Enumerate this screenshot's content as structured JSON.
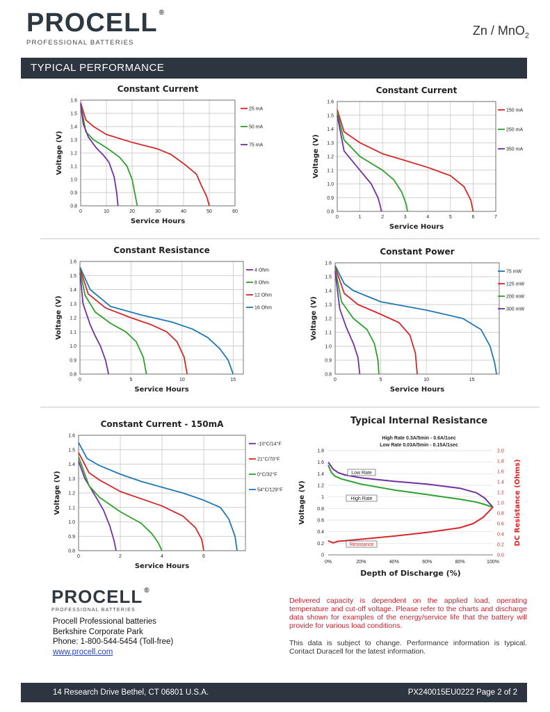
{
  "brand": {
    "name": "PROCELL",
    "reg": "®",
    "tagline": "PROFESSIONAL BATTERIES"
  },
  "chemistry": {
    "base": "Zn / MnO",
    "sub": "2"
  },
  "section": {
    "title": "TYPICAL  PERFORMANCE"
  },
  "charts": [
    {
      "title": "Constant Current",
      "xlabel": "Service Hours",
      "ylabel": "Voltage (V)",
      "xlim": [
        0,
        60
      ],
      "ylim": [
        0.8,
        1.6
      ],
      "xticks": [
        0,
        10,
        20,
        30,
        40,
        50,
        60
      ],
      "yticks": [
        0.8,
        0.9,
        1.0,
        1.1,
        1.2,
        1.3,
        1.4,
        1.5,
        1.6
      ],
      "ydec": 1,
      "series": [
        {
          "name": "25 mA",
          "color": "#d62728",
          "points": [
            [
              0,
              1.58
            ],
            [
              2,
              1.45
            ],
            [
              5,
              1.4
            ],
            [
              10,
              1.34
            ],
            [
              20,
              1.28
            ],
            [
              30,
              1.23
            ],
            [
              35,
              1.19
            ],
            [
              40,
              1.12
            ],
            [
              45,
              1.04
            ],
            [
              47,
              0.95
            ],
            [
              49,
              0.87
            ],
            [
              50,
              0.8
            ]
          ]
        },
        {
          "name": "50 mA",
          "color": "#2ca02c",
          "points": [
            [
              0,
              1.57
            ],
            [
              2,
              1.36
            ],
            [
              5,
              1.3
            ],
            [
              10,
              1.24
            ],
            [
              15,
              1.17
            ],
            [
              18,
              1.1
            ],
            [
              20,
              1.0
            ],
            [
              21,
              0.9
            ],
            [
              22,
              0.8
            ]
          ]
        },
        {
          "name": "75 mA",
          "color": "#7030a0",
          "points": [
            [
              0,
              1.57
            ],
            [
              1,
              1.42
            ],
            [
              3,
              1.32
            ],
            [
              6,
              1.24
            ],
            [
              9,
              1.18
            ],
            [
              11,
              1.13
            ],
            [
              13,
              1.02
            ],
            [
              14,
              0.9
            ],
            [
              14.5,
              0.8
            ]
          ]
        }
      ]
    },
    {
      "title": "Constant Current",
      "xlabel": "Service Hours",
      "ylabel": "Voltage (V)",
      "xlim": [
        0,
        7
      ],
      "ylim": [
        0.8,
        1.6
      ],
      "xticks": [
        0,
        1,
        2,
        3,
        4,
        5,
        6,
        7
      ],
      "yticks": [
        0.8,
        0.9,
        1.0,
        1.1,
        1.2,
        1.3,
        1.4,
        1.5,
        1.6
      ],
      "ydec": 1,
      "series": [
        {
          "name": "150 mA",
          "color": "#d62728",
          "points": [
            [
              0,
              1.54
            ],
            [
              0.3,
              1.38
            ],
            [
              1,
              1.3
            ],
            [
              2,
              1.22
            ],
            [
              3,
              1.17
            ],
            [
              4,
              1.12
            ],
            [
              5,
              1.06
            ],
            [
              5.6,
              0.98
            ],
            [
              5.9,
              0.88
            ],
            [
              6,
              0.8
            ]
          ]
        },
        {
          "name": "250 mA",
          "color": "#2ca02c",
          "points": [
            [
              0,
              1.52
            ],
            [
              0.3,
              1.32
            ],
            [
              1,
              1.2
            ],
            [
              2,
              1.1
            ],
            [
              2.5,
              1.03
            ],
            [
              2.85,
              0.94
            ],
            [
              3.05,
              0.85
            ],
            [
              3.1,
              0.8
            ]
          ]
        },
        {
          "name": "350 mA",
          "color": "#7030a0",
          "points": [
            [
              0,
              1.5
            ],
            [
              0.3,
              1.24
            ],
            [
              1,
              1.1
            ],
            [
              1.5,
              1.0
            ],
            [
              1.8,
              0.9
            ],
            [
              1.9,
              0.84
            ],
            [
              1.95,
              0.8
            ]
          ]
        }
      ]
    },
    {
      "title": "Constant Resistance",
      "xlabel": "Service Hours",
      "ylabel": "Voltage (V)",
      "xlim": [
        0,
        16
      ],
      "ylim": [
        0.8,
        1.6
      ],
      "xticks": [
        0,
        5,
        10,
        15
      ],
      "yticks": [
        0.8,
        0.9,
        1.0,
        1.1,
        1.2,
        1.3,
        1.4,
        1.5,
        1.6
      ],
      "ydec": 1,
      "series": [
        {
          "name": "4 Ohm",
          "color": "#7030a0",
          "points": [
            [
              0,
              1.52
            ],
            [
              0.3,
              1.3
            ],
            [
              1,
              1.15
            ],
            [
              1.5,
              1.07
            ],
            [
              2,
              1.0
            ],
            [
              2.5,
              0.9
            ],
            [
              2.8,
              0.8
            ]
          ]
        },
        {
          "name": "8 Ohm",
          "color": "#2ca02c",
          "points": [
            [
              0,
              1.54
            ],
            [
              0.5,
              1.36
            ],
            [
              1.5,
              1.24
            ],
            [
              3,
              1.16
            ],
            [
              4.5,
              1.1
            ],
            [
              5.5,
              1.03
            ],
            [
              6.2,
              0.92
            ],
            [
              6.5,
              0.8
            ]
          ]
        },
        {
          "name": "12 Ohm",
          "color": "#d62728",
          "points": [
            [
              0,
              1.55
            ],
            [
              0.8,
              1.37
            ],
            [
              2.5,
              1.27
            ],
            [
              5,
              1.2
            ],
            [
              7,
              1.15
            ],
            [
              8.5,
              1.1
            ],
            [
              9.5,
              1.03
            ],
            [
              10.2,
              0.92
            ],
            [
              10.5,
              0.8
            ]
          ]
        },
        {
          "name": "16 Ohm",
          "color": "#1f77b4",
          "points": [
            [
              0,
              1.56
            ],
            [
              1,
              1.4
            ],
            [
              3,
              1.28
            ],
            [
              6,
              1.22
            ],
            [
              9,
              1.17
            ],
            [
              11,
              1.12
            ],
            [
              12.5,
              1.06
            ],
            [
              13.7,
              0.98
            ],
            [
              14.5,
              0.9
            ],
            [
              15,
              0.8
            ]
          ]
        }
      ]
    },
    {
      "title": "Constant Power",
      "xlabel": "Service Hours",
      "ylabel": "Voltage (V)",
      "xlim": [
        0,
        18
      ],
      "ylim": [
        0.8,
        1.6
      ],
      "xticks": [
        0,
        5,
        10,
        15
      ],
      "yticks": [
        0.8,
        0.9,
        1.0,
        1.1,
        1.2,
        1.3,
        1.4,
        1.5,
        1.6
      ],
      "ydec": 1,
      "series": [
        {
          "name": "75 mW",
          "color": "#1f77b4",
          "points": [
            [
              0,
              1.58
            ],
            [
              1,
              1.45
            ],
            [
              2,
              1.4
            ],
            [
              5,
              1.32
            ],
            [
              10,
              1.26
            ],
            [
              14,
              1.2
            ],
            [
              16,
              1.12
            ],
            [
              17,
              1.0
            ],
            [
              17.5,
              0.88
            ],
            [
              17.7,
              0.8
            ]
          ]
        },
        {
          "name": "125 mW",
          "color": "#d62728",
          "points": [
            [
              0,
              1.57
            ],
            [
              1,
              1.38
            ],
            [
              2.5,
              1.3
            ],
            [
              5,
              1.23
            ],
            [
              7,
              1.17
            ],
            [
              8.2,
              1.08
            ],
            [
              8.8,
              0.95
            ],
            [
              9,
              0.8
            ]
          ]
        },
        {
          "name": "200 mW",
          "color": "#2ca02c",
          "points": [
            [
              0,
              1.56
            ],
            [
              0.7,
              1.32
            ],
            [
              2,
              1.2
            ],
            [
              3.5,
              1.12
            ],
            [
              4.3,
              1.02
            ],
            [
              4.7,
              0.9
            ],
            [
              4.8,
              0.8
            ]
          ]
        },
        {
          "name": "300 mW",
          "color": "#7030a0",
          "points": [
            [
              0,
              1.54
            ],
            [
              0.5,
              1.27
            ],
            [
              1.2,
              1.14
            ],
            [
              2,
              1.02
            ],
            [
              2.5,
              0.92
            ],
            [
              2.7,
              0.8
            ]
          ]
        }
      ]
    },
    {
      "title": "Constant Current - 150mA",
      "xlabel": "Service Hours",
      "ylabel": "Voltage (V)",
      "xlim": [
        0,
        8
      ],
      "ylim": [
        0.8,
        1.6
      ],
      "xticks": [
        0,
        2,
        4,
        6
      ],
      "yticks": [
        0.8,
        0.9,
        1.0,
        1.1,
        1.2,
        1.3,
        1.4,
        1.5,
        1.6
      ],
      "ydec": 1,
      "series": [
        {
          "name": "-10°C/14°F",
          "color": "#7030a0",
          "points": [
            [
              0,
              1.42
            ],
            [
              0.3,
              1.3
            ],
            [
              0.8,
              1.18
            ],
            [
              1.2,
              1.08
            ],
            [
              1.5,
              0.97
            ],
            [
              1.7,
              0.87
            ],
            [
              1.8,
              0.8
            ]
          ]
        },
        {
          "name": "21°C/70°F",
          "color": "#d62728",
          "points": [
            [
              0,
              1.48
            ],
            [
              0.5,
              1.34
            ],
            [
              1,
              1.29
            ],
            [
              2,
              1.21
            ],
            [
              3,
              1.16
            ],
            [
              4,
              1.11
            ],
            [
              5,
              1.04
            ],
            [
              5.6,
              0.96
            ],
            [
              5.9,
              0.88
            ],
            [
              6,
              0.8
            ]
          ]
        },
        {
          "name": "0°C/32°F",
          "color": "#2ca02c",
          "points": [
            [
              0,
              1.45
            ],
            [
              0.5,
              1.25
            ],
            [
              1,
              1.17
            ],
            [
              2,
              1.07
            ],
            [
              3,
              0.99
            ],
            [
              3.5,
              0.92
            ],
            [
              3.8,
              0.86
            ],
            [
              4,
              0.8
            ]
          ]
        },
        {
          "name": "54°C/129°F",
          "color": "#1f77b4",
          "points": [
            [
              0,
              1.55
            ],
            [
              0.4,
              1.44
            ],
            [
              1,
              1.39
            ],
            [
              2,
              1.33
            ],
            [
              3,
              1.28
            ],
            [
              4,
              1.24
            ],
            [
              5,
              1.2
            ],
            [
              6,
              1.15
            ],
            [
              6.8,
              1.1
            ],
            [
              7.2,
              1.02
            ],
            [
              7.5,
              0.9
            ],
            [
              7.6,
              0.8
            ]
          ]
        }
      ]
    }
  ],
  "ir_chart": {
    "title": "Typical Internal Resistance",
    "subtitle1": "High Rate 0.3A/5min - 0.6A/1sec",
    "subtitle2": "Low Rate 0.03A/5min - 0.15A/1sec",
    "xlabel": "Depth of Discharge (%)",
    "ylabel": "Voltage (V)",
    "y2label": "DC Resistance (Ohms)",
    "xticks": [
      "0%",
      "20%",
      "40%",
      "60%",
      "80%",
      "100%"
    ],
    "yticks": [
      "0",
      "0.2",
      "0.4",
      "0.6",
      "0.8",
      "1",
      "1.2",
      "1.4",
      "1.6",
      "1.8"
    ],
    "y2ticks": [
      "0.0",
      "0.2",
      "0.4",
      "0.6",
      "0.8",
      "1.0",
      "1.2",
      "1.4",
      "1.6",
      "1.8",
      "2.0"
    ],
    "xlim": [
      0,
      100
    ],
    "ylim": [
      0,
      1.8
    ],
    "y2lim": [
      0,
      2.0
    ],
    "series": [
      {
        "name": "Low Rate",
        "color": "#7030a0",
        "axis": "left",
        "points": [
          [
            0,
            1.6
          ],
          [
            3,
            1.48
          ],
          [
            6,
            1.42
          ],
          [
            10,
            1.38
          ],
          [
            20,
            1.33
          ],
          [
            40,
            1.27
          ],
          [
            60,
            1.22
          ],
          [
            80,
            1.15
          ],
          [
            90,
            1.07
          ],
          [
            95,
            0.98
          ],
          [
            100,
            0.82
          ]
        ]
      },
      {
        "name": "High Rate",
        "color": "#2ca02c",
        "axis": "left",
        "points": [
          [
            0,
            1.55
          ],
          [
            2,
            1.42
          ],
          [
            4,
            1.36
          ],
          [
            8,
            1.31
          ],
          [
            20,
            1.22
          ],
          [
            40,
            1.12
          ],
          [
            60,
            1.04
          ],
          [
            80,
            0.96
          ],
          [
            90,
            0.91
          ],
          [
            95,
            0.87
          ],
          [
            100,
            0.82
          ]
        ]
      },
      {
        "name": "Resistance",
        "color": "#d62728",
        "axis": "right",
        "points": [
          [
            0,
            0.27
          ],
          [
            3,
            0.23
          ],
          [
            6,
            0.26
          ],
          [
            10,
            0.27
          ],
          [
            20,
            0.3
          ],
          [
            40,
            0.36
          ],
          [
            60,
            0.43
          ],
          [
            80,
            0.52
          ],
          [
            88,
            0.6
          ],
          [
            94,
            0.72
          ],
          [
            98,
            0.85
          ],
          [
            100,
            0.92
          ]
        ]
      }
    ],
    "labels": {
      "low": "Low Rate",
      "high": "High Rate",
      "res": "Resistance"
    }
  },
  "contact": {
    "company": "Procell Professional batteries",
    "park": "Berkshire Corporate Park",
    "phone": "Phone: 1-800-544-5454 (Toll-free)",
    "web": "www.procell.com"
  },
  "notes": {
    "red": "Delivered capacity is dependent on the applied load, operating temperature and cut-off voltage. Please refer to the charts and discharge data shown for examples of the energy/service life that the battery will provide for various load conditions.",
    "grey": "This data is subject to change. Performance information is typical. Contact Duracell for the latest information."
  },
  "footer": {
    "address": "14 Research Drive Bethel, CT 06801 U.S.A.",
    "code": "PX240015EU0222   Page 2 of 2"
  }
}
